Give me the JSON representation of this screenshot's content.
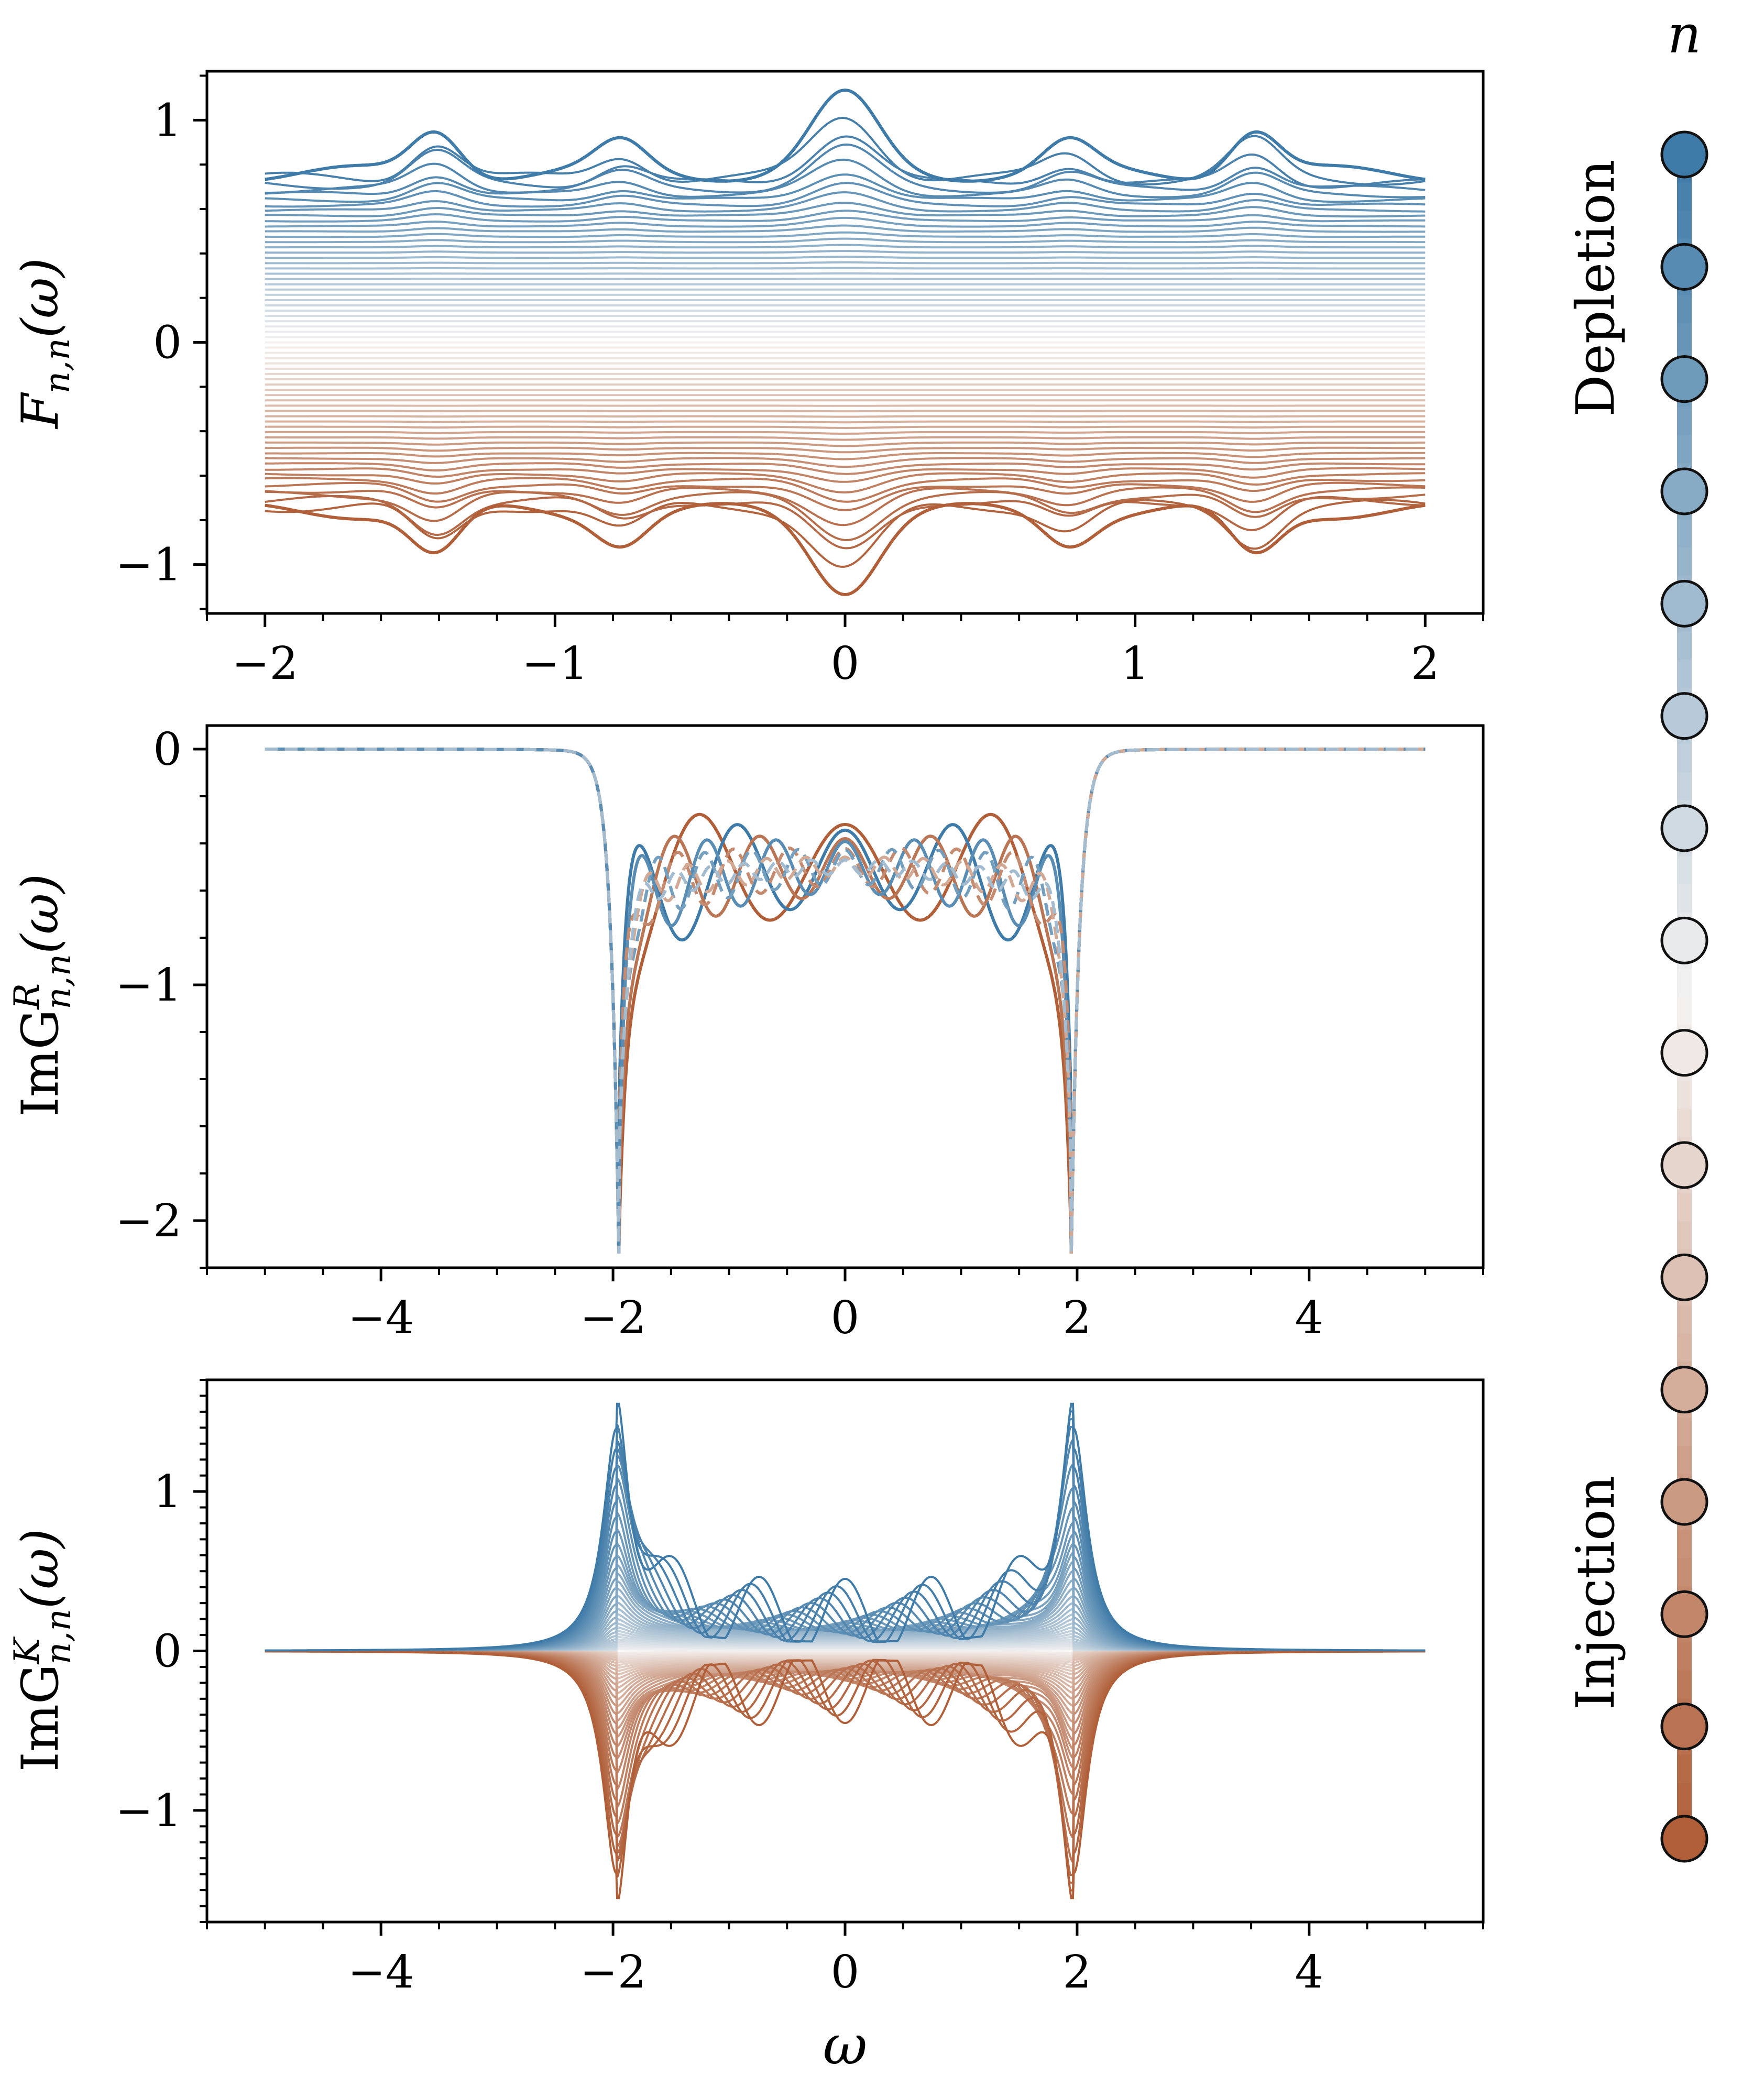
{
  "chart_data": [
    {
      "type": "line",
      "ylabel": {
        "main": "F",
        "sub": "n,n",
        "tail": "(ω)"
      },
      "xlim": [
        -2.2,
        2.2
      ],
      "ylim": [
        -1.22,
        1.22
      ],
      "x_range": [
        -2,
        2
      ],
      "x_ticks": [
        -2,
        -1,
        0,
        1,
        2
      ],
      "y_ticks": [
        -1,
        0,
        1
      ],
      "tick_labels_x": [
        "−2",
        "−1",
        "0",
        "1",
        "2"
      ],
      "tick_labels_y": [
        "−1",
        "0",
        "1"
      ],
      "series_count": 65,
      "outer_curve_peaks": {
        "x": [
          0,
          -1.41,
          1.41,
          -0.77,
          0.77
        ],
        "y": [
          1.1,
          0.96,
          0.96,
          0.89,
          0.89
        ]
      },
      "flat_level_max": 0.76,
      "symmetry": "F is antisymmetric in n (depletion positive, injection negative)"
    },
    {
      "type": "line",
      "ylabel": {
        "main": "ImG",
        "sup": "R",
        "sub": "n,n",
        "tail": "(ω)"
      },
      "xlim": [
        -5.5,
        5.5
      ],
      "ylim": [
        -2.2,
        0.1
      ],
      "x_range": [
        -5,
        5
      ],
      "x_ticks": [
        -4,
        -2,
        0,
        2,
        4
      ],
      "y_ticks": [
        -2,
        -1,
        0
      ],
      "tick_labels_x": [
        "−4",
        "−2",
        "0",
        "2",
        "4"
      ],
      "tick_labels_y": [
        "−2",
        "−1",
        "0"
      ],
      "band_edges": [
        -1.97,
        1.97
      ],
      "edge_minimum": -2.12,
      "center_value": -0.5,
      "series_count": 8
    },
    {
      "type": "line",
      "ylabel": {
        "main": "ImG",
        "sup": "K",
        "sub": "n,n",
        "tail": "(ω)"
      },
      "xlabel": "ω",
      "xlim": [
        -5.5,
        5.5
      ],
      "ylim": [
        -1.7,
        1.7
      ],
      "x_range": [
        -5,
        5
      ],
      "x_ticks": [
        -4,
        -2,
        0,
        2,
        4
      ],
      "y_ticks": [
        -1,
        0,
        1
      ],
      "tick_labels_x": [
        "−4",
        "−2",
        "0",
        "2",
        "4"
      ],
      "tick_labels_y": [
        "−1",
        "0",
        "1"
      ],
      "edge_peak": 1.55,
      "series_count": 65
    }
  ],
  "colorbar": {
    "title": "n",
    "label_top": "Depletion",
    "label_bottom": "Injection",
    "marker_count": 16,
    "color_top": "#3f7ba8",
    "color_mid": "#f4f2f1",
    "color_bottom": "#b05f39"
  }
}
